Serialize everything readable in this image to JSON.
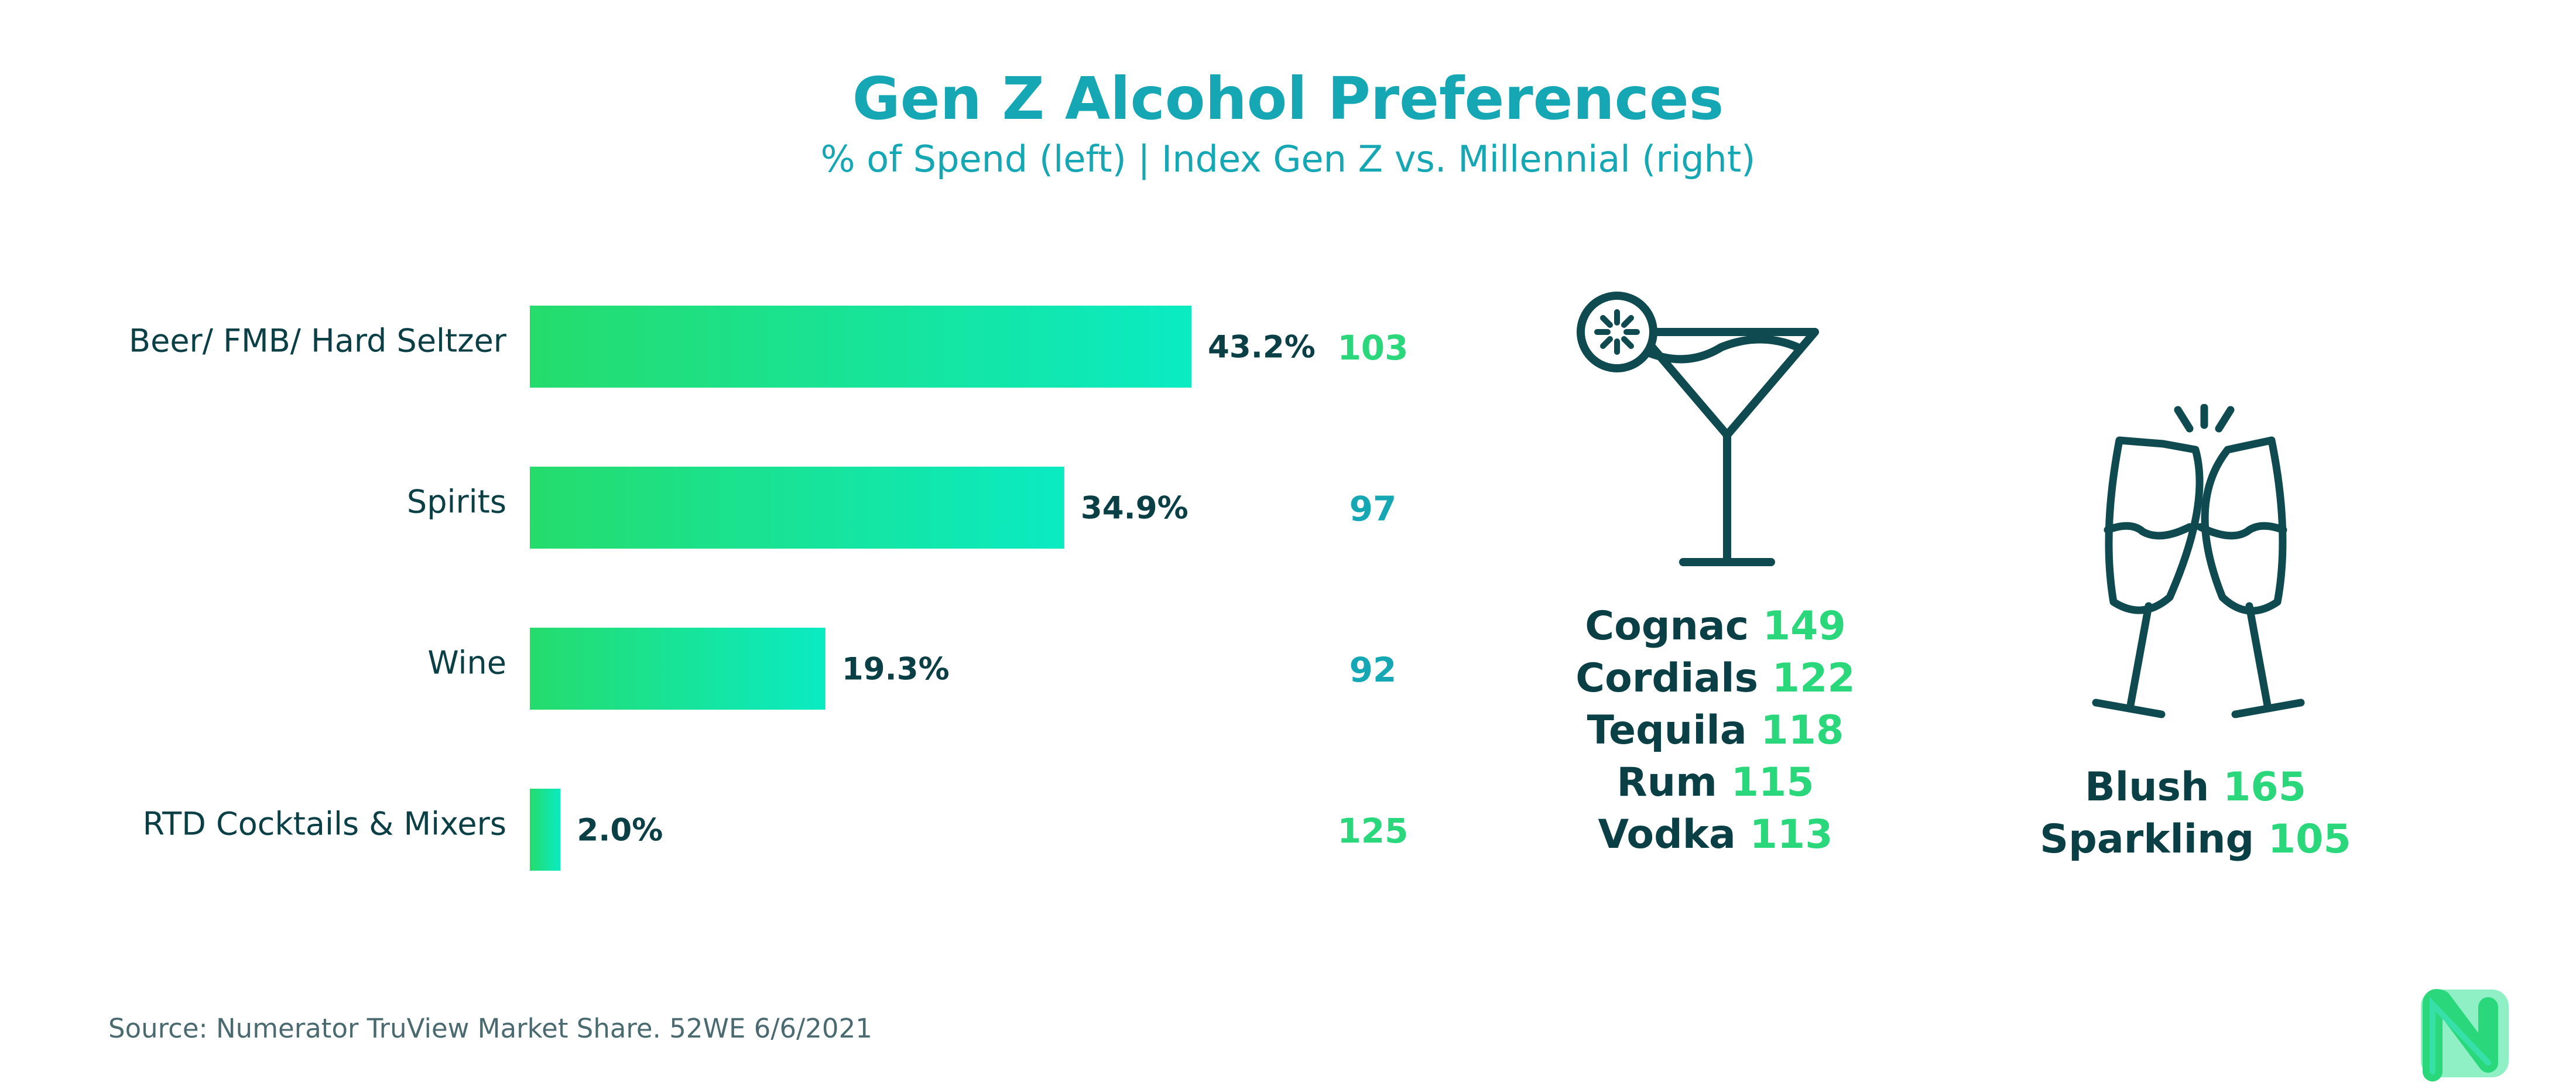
{
  "chart_data": {
    "type": "bar",
    "orientation": "horizontal",
    "title": "Gen Z Alcohol Preferences",
    "subtitle": "% of Spend (left) | Index Gen Z vs. Millennial (right)",
    "categories": [
      "Beer/ FMB/ Hard Seltzer",
      "Spirits",
      "Wine",
      "RTD Cocktails & Mixers"
    ],
    "series": [
      {
        "values": [
          43.2,
          34.9,
          19.3,
          2.0
        ]
      }
    ],
    "value_labels": [
      "43.2%",
      "34.9%",
      "19.3%",
      "2.0%"
    ],
    "index_values": [
      103,
      97,
      92,
      125
    ],
    "index_colors": [
      "#2ad77b",
      "#16a7b4",
      "#16a7b4",
      "#2ad77b"
    ],
    "xlim": [
      0,
      43.2
    ],
    "bar_gradient": [
      "#25dc6c",
      "#0aebc3"
    ],
    "grid": false
  },
  "spirits": {
    "icon": "cocktail-glass-icon",
    "items": [
      {
        "name": "Cognac",
        "index": "149"
      },
      {
        "name": "Cordials",
        "index": "122"
      },
      {
        "name": "Tequila",
        "index": "118"
      },
      {
        "name": "Rum",
        "index": "115"
      },
      {
        "name": "Vodka",
        "index": "113"
      }
    ]
  },
  "wine": {
    "icon": "champagne-toast-icon",
    "items": [
      {
        "name": "Blush",
        "index": "165"
      },
      {
        "name": "Sparkling",
        "index": "105"
      }
    ]
  },
  "source": "Source: Numerator TruView Market Share. 52WE 6/6/2021",
  "colors": {
    "title": "#16a7b4",
    "dark": "#0b3f46",
    "green": "#2ad77b",
    "icon_stroke": "#0e4a50"
  },
  "logo": {
    "icon": "numerator-n-logo-icon"
  }
}
